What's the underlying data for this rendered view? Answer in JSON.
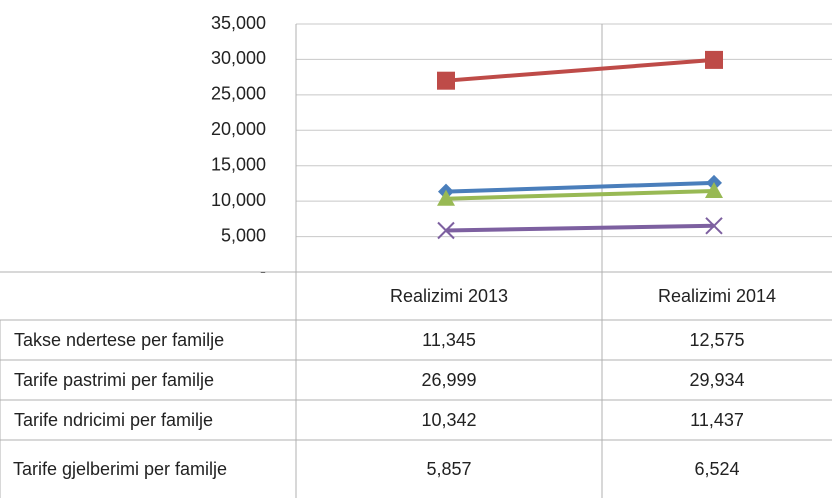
{
  "chart_data": {
    "type": "line",
    "categories": [
      "Realizimi 2013",
      "Realizimi 2014"
    ],
    "series": [
      {
        "name": "Takse ndertese per familje",
        "color": "#4a7ebb",
        "marker": "diamond",
        "values": [
          11345,
          12575
        ],
        "value_labels": [
          "11,345",
          "12,575"
        ]
      },
      {
        "name": "Tarife pastrimi per familje",
        "color": "#be4b48",
        "marker": "square",
        "values": [
          26999,
          29934
        ],
        "value_labels": [
          "26,999",
          "29,934"
        ]
      },
      {
        "name": "Tarife ndricimi per familje",
        "color": "#98b954",
        "marker": "triangle",
        "values": [
          10342,
          11437
        ],
        "value_labels": [
          "10,342",
          "11,437"
        ]
      },
      {
        "name": "Tarife gjelberimi per familje",
        "color": "#7d60a0",
        "marker": "x",
        "values": [
          5857,
          6524
        ],
        "value_labels": [
          "5,857",
          "6,524"
        ]
      }
    ],
    "ylim": [
      0,
      35000
    ],
    "yticks": [
      {
        "value": 0,
        "label": "-"
      },
      {
        "value": 5000,
        "label": "5,000"
      },
      {
        "value": 10000,
        "label": "10,000"
      },
      {
        "value": 15000,
        "label": "15,000"
      },
      {
        "value": 20000,
        "label": "20,000"
      },
      {
        "value": 25000,
        "label": "25,000"
      },
      {
        "value": 30000,
        "label": "30,000"
      },
      {
        "value": 35000,
        "label": "35,000"
      }
    ],
    "grid": true
  }
}
